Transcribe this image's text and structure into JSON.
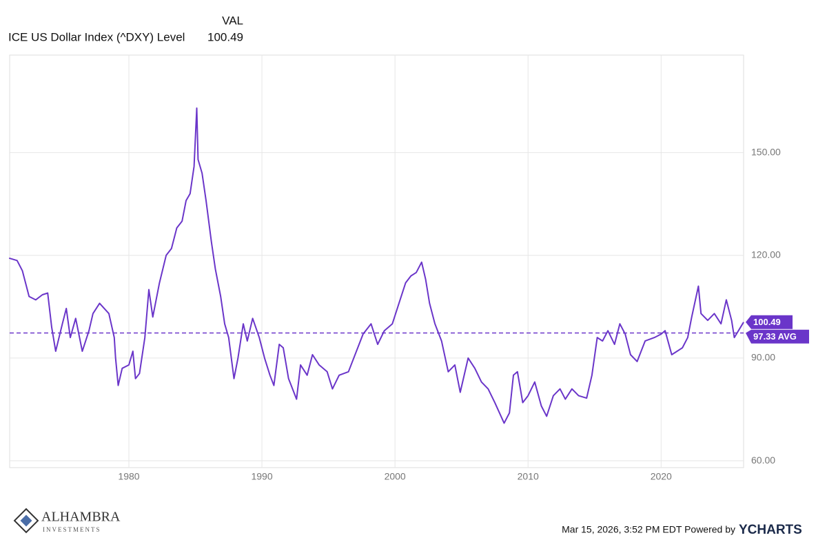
{
  "chart_data": {
    "type": "line",
    "value_header": "VAL",
    "x": [
      1971.0,
      1971.6,
      1972.0,
      1972.5,
      1973.0,
      1973.5,
      1973.9,
      1974.2,
      1974.5,
      1975.0,
      1975.3,
      1975.6,
      1976.0,
      1976.5,
      1977.0,
      1977.3,
      1977.8,
      1978.5,
      1978.9,
      1979.0,
      1979.2,
      1979.5,
      1980.0,
      1980.3,
      1980.5,
      1980.8,
      1981.2,
      1981.5,
      1981.8,
      1982.3,
      1982.8,
      1983.2,
      1983.6,
      1984.0,
      1984.3,
      1984.6,
      1984.9,
      1985.1,
      1985.2,
      1985.5,
      1985.8,
      1986.2,
      1986.5,
      1986.9,
      1987.2,
      1987.5,
      1987.9,
      1988.2,
      1988.6,
      1988.9,
      1989.3,
      1989.8,
      1990.2,
      1990.6,
      1990.9,
      1991.3,
      1991.6,
      1992.0,
      1992.6,
      1992.9,
      1993.4,
      1993.8,
      1994.3,
      1994.9,
      1995.3,
      1995.8,
      1996.5,
      1997.2,
      1997.6,
      1998.2,
      1998.7,
      1999.2,
      1999.8,
      2000.3,
      2000.8,
      2001.2,
      2001.6,
      2002.0,
      2002.3,
      2002.6,
      2003.0,
      2003.5,
      2004.0,
      2004.5,
      2004.9,
      2005.5,
      2006.0,
      2006.5,
      2007.0,
      2007.5,
      2008.2,
      2008.6,
      2008.9,
      2009.2,
      2009.6,
      2010.0,
      2010.5,
      2011.0,
      2011.4,
      2011.9,
      2012.4,
      2012.8,
      2013.3,
      2013.8,
      2014.4,
      2014.8,
      2015.2,
      2015.6,
      2016.0,
      2016.5,
      2016.9,
      2017.3,
      2017.7,
      2018.2,
      2018.8,
      2019.5,
      2020.0,
      2020.3,
      2020.8,
      2021.2,
      2021.6,
      2022.0,
      2022.3,
      2022.8,
      2023.0,
      2023.5,
      2024.0,
      2024.5,
      2024.9,
      2025.3,
      2025.5,
      2026.2
    ],
    "series": [
      {
        "name": "ICE US Dollar Index (^DXY) Level",
        "color": "#6a35c9",
        "values": [
          119.2,
          118.5,
          115.5,
          108,
          107,
          108.5,
          109,
          99,
          92,
          100,
          104.5,
          96,
          101.6,
          92,
          98,
          103,
          106,
          103,
          96,
          90,
          82,
          87,
          88,
          92,
          84,
          85.5,
          96,
          110,
          102,
          112,
          120,
          122,
          128,
          130,
          136,
          138,
          146,
          163,
          148,
          144,
          136,
          124,
          116,
          108,
          100,
          96,
          84,
          90,
          100,
          95,
          101.6,
          96,
          90,
          85,
          82,
          94,
          93,
          84,
          78,
          88,
          85,
          91,
          88,
          86,
          81,
          85,
          86,
          93,
          97,
          100,
          94,
          98,
          100,
          106,
          112,
          114,
          115,
          118,
          113,
          106,
          100,
          95,
          86,
          88,
          80,
          90,
          87,
          83,
          81,
          77,
          71,
          74,
          85,
          86,
          77,
          79,
          83,
          76,
          73,
          79,
          81,
          78,
          81,
          79,
          78.3,
          85,
          96,
          95,
          98,
          94,
          100,
          97,
          91,
          89,
          95,
          96,
          97,
          98,
          91,
          92,
          93,
          96,
          102,
          111,
          103,
          101,
          103,
          100,
          107,
          101,
          96,
          100.49
        ]
      }
    ],
    "last_value": 100.49,
    "average": {
      "value": 97.33,
      "label": "97.33 AVG"
    },
    "xlim": [
      1971.04,
      2026.2
    ],
    "ylim": [
      58,
      178.5
    ],
    "xticks": [
      1980,
      1990,
      2000,
      2010,
      2020
    ],
    "yticks": [
      {
        "value": 60,
        "label": "60.00"
      },
      {
        "value": 90,
        "label": "90.00"
      },
      {
        "value": 120,
        "label": "120.00"
      },
      {
        "value": 150,
        "label": "150.00"
      }
    ],
    "grid": true
  },
  "branding": {
    "logo_name": "ALHAMBRA",
    "logo_sub": "INVESTMENTS",
    "timestamp": "Mar 15, 2026, 3:52 PM EDT Powered by",
    "provider": "YCHARTS"
  }
}
